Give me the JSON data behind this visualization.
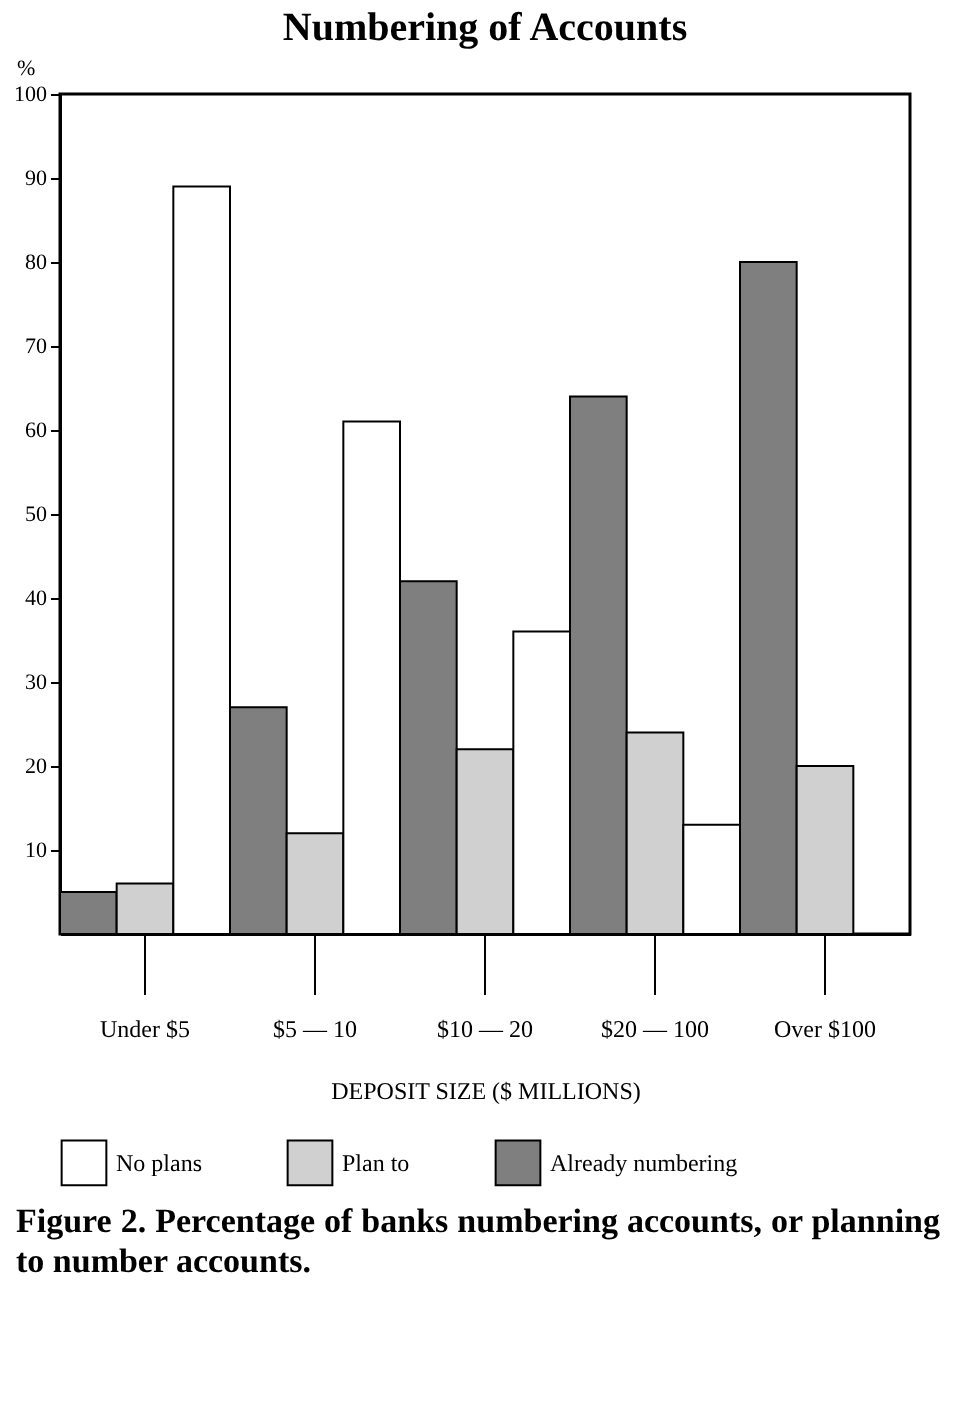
{
  "chart_data": {
    "type": "bar",
    "title": "Numbering of Accounts",
    "ylabel": "%",
    "xlabel": "DEPOSIT SIZE ($ MILLIONS)",
    "categories": [
      "Under $5",
      "$5 — 10",
      "$10 — 20",
      "$20 — 100",
      "Over $100"
    ],
    "series": [
      {
        "name": "Already numbering",
        "color": "#7f7f7f",
        "values": [
          5,
          27,
          42,
          64,
          80
        ]
      },
      {
        "name": "Plan to",
        "color": "#d0d0d0",
        "values": [
          6,
          12,
          22,
          24,
          20
        ]
      },
      {
        "name": "No plans",
        "color": "#ffffff",
        "values": [
          89,
          61,
          36,
          13,
          null
        ]
      }
    ],
    "ylim": [
      0,
      100
    ],
    "yticks": [
      10,
      20,
      30,
      40,
      50,
      60,
      70,
      80,
      90,
      100
    ],
    "grid": false,
    "legend": "bottom",
    "annotations": [
      "Figure 2. Percentage of banks numbering accounts, or planning to number accounts."
    ]
  }
}
